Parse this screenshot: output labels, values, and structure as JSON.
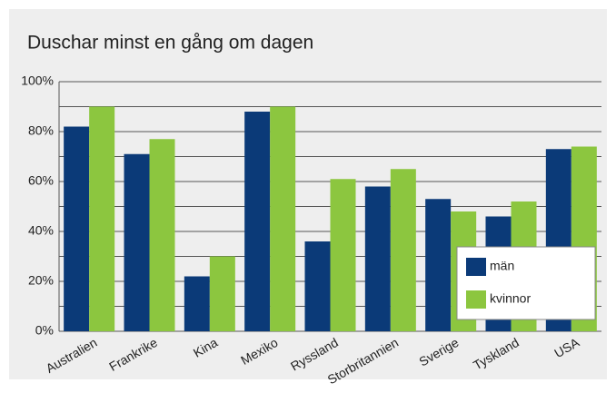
{
  "chart_data": {
    "type": "bar",
    "title": "Duschar minst en gång om dagen",
    "categories": [
      "Australien",
      "Frankrike",
      "Kina",
      "Mexiko",
      "Ryssland",
      "Storbritannien",
      "Sverige",
      "Tyskland",
      "USA"
    ],
    "series": [
      {
        "name": "män",
        "color": "#0b3a78",
        "values": [
          82,
          71,
          22,
          88,
          36,
          58,
          53,
          46,
          73
        ]
      },
      {
        "name": "kvinnor",
        "color": "#8cc63f",
        "values": [
          90,
          77,
          30,
          90,
          61,
          65,
          48,
          52,
          74
        ]
      }
    ],
    "ylim": [
      0,
      100
    ],
    "yticks": [
      {
        "value": 0,
        "label": "0%"
      },
      {
        "value": 20,
        "label": "20%"
      },
      {
        "value": 40,
        "label": "40%"
      },
      {
        "value": 60,
        "label": "60%"
      },
      {
        "value": 80,
        "label": "80%"
      },
      {
        "value": 100,
        "label": "100%"
      }
    ],
    "minor_grid": [
      10,
      30,
      50,
      70,
      90
    ],
    "grid": true,
    "legend": "lower right"
  }
}
